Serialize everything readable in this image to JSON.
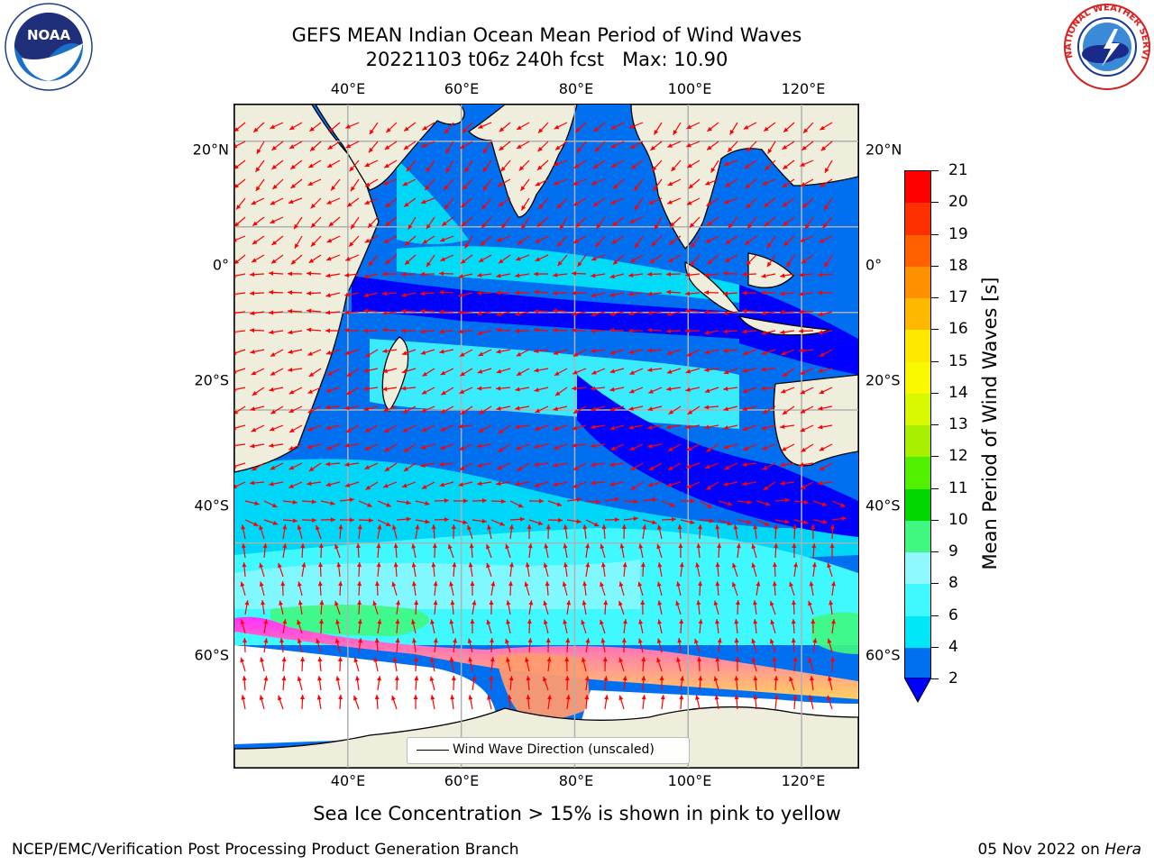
{
  "title": {
    "line1": "GEFS MEAN Indian Ocean Mean Period of Wind Waves",
    "line2": "20221103 t06z 240h fcst   Max: 10.90"
  },
  "logos": {
    "left": {
      "name": "noaa-logo",
      "text": "NOAA"
    },
    "right": {
      "name": "nws-logo",
      "text": "NATIONAL WEATHER SERVICE"
    }
  },
  "map": {
    "lon_ticks": [
      "40°E",
      "60°E",
      "80°E",
      "100°E",
      "120°E"
    ],
    "lat_ticks": [
      "20°N",
      "0°",
      "20°S",
      "40°S",
      "60°S"
    ],
    "lon_values": [
      40,
      60,
      80,
      100,
      120
    ],
    "lat_values": [
      20,
      0,
      -20,
      -40,
      -60
    ],
    "extent": {
      "lon_min": 20,
      "lon_max": 130,
      "lat_min": -78,
      "lat_max": 28
    },
    "legend_label": "Wind Wave Direction (unscaled)",
    "land_color": "#efeedd",
    "arrow_color": "#ff0000"
  },
  "colorbar": {
    "title": "Mean Period of Wind Waves [s]",
    "labels": [
      "2",
      "4",
      "6",
      "8",
      "9",
      "10",
      "11",
      "12",
      "13",
      "14",
      "15",
      "16",
      "17",
      "18",
      "19",
      "20",
      "21"
    ],
    "colors": [
      "#0070f0",
      "#00e8f8",
      "#40f8ff",
      "#90f8ff",
      "#40f880",
      "#00d800",
      "#50f000",
      "#a8f000",
      "#d8f800",
      "#f8f800",
      "#ffe800",
      "#ffb800",
      "#ff9000",
      "#ff6000",
      "#ff3000",
      "#ff0000"
    ],
    "under_color": "#0000ff"
  },
  "caption": "Sea Ice Concentration > 15% is shown in pink to yellow",
  "footer": {
    "left": "NCEP/EMC/Verification Post Processing Product Generation Branch",
    "right_date": "05 Nov 2022 on ",
    "right_host": "Hera"
  }
}
